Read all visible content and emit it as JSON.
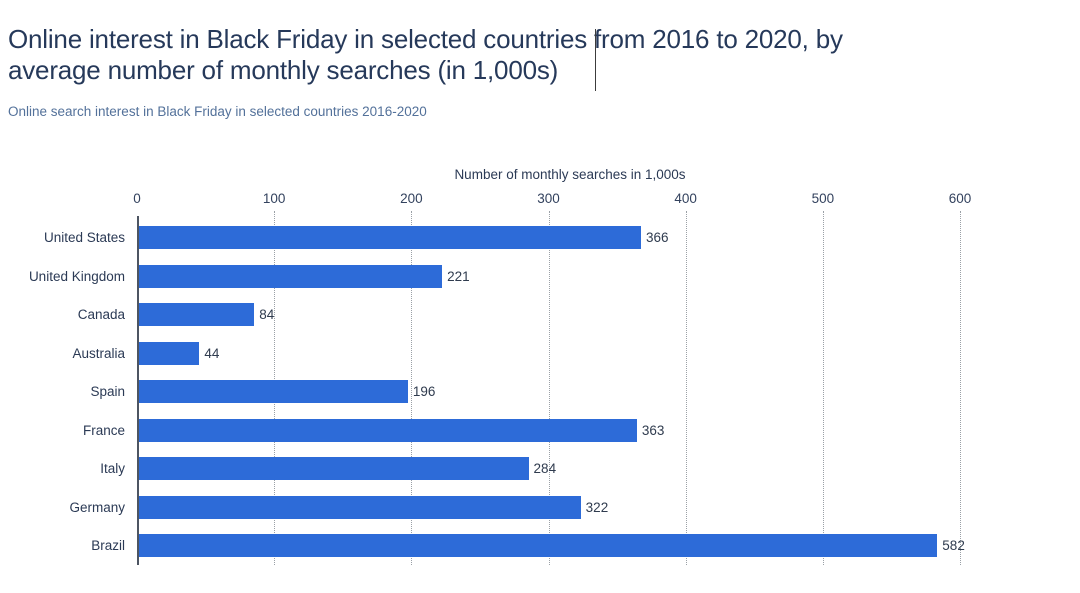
{
  "header": {
    "title_line1": "Online interest in Black Friday in selected countries from 2016 to 2020, by",
    "title_line2": "average number of monthly searches (in 1,000s)",
    "subtitle": "Online search interest in Black Friday in selected countries 2016-2020"
  },
  "chart_data": {
    "type": "bar",
    "orientation": "horizontal",
    "title": "Online interest in Black Friday in selected countries from 2016 to 2020, by average number of monthly searches (in 1,000s)",
    "subtitle": "Online search interest in Black Friday in selected countries 2016-2020",
    "xlabel": "Number of monthly searches in 1,000s",
    "categories": [
      "United States",
      "United Kingdom",
      "Canada",
      "Australia",
      "Spain",
      "France",
      "Italy",
      "Germany",
      "Brazil"
    ],
    "values": [
      366,
      221,
      84,
      44,
      196,
      363,
      284,
      322,
      582
    ],
    "xlim": [
      0,
      600
    ],
    "xticks": [
      0,
      100,
      200,
      300,
      400,
      500,
      600
    ],
    "grid": "vertical dotted gridlines",
    "legend": "none",
    "colors": {
      "bar": "#2d6bd8",
      "title": "#26395a",
      "subtitle": "#53719a",
      "category_label": "#2b3a55",
      "value_label": "#2f3b4e",
      "gridline": "#9aa0a6",
      "axis_line": "#4d5562"
    }
  }
}
